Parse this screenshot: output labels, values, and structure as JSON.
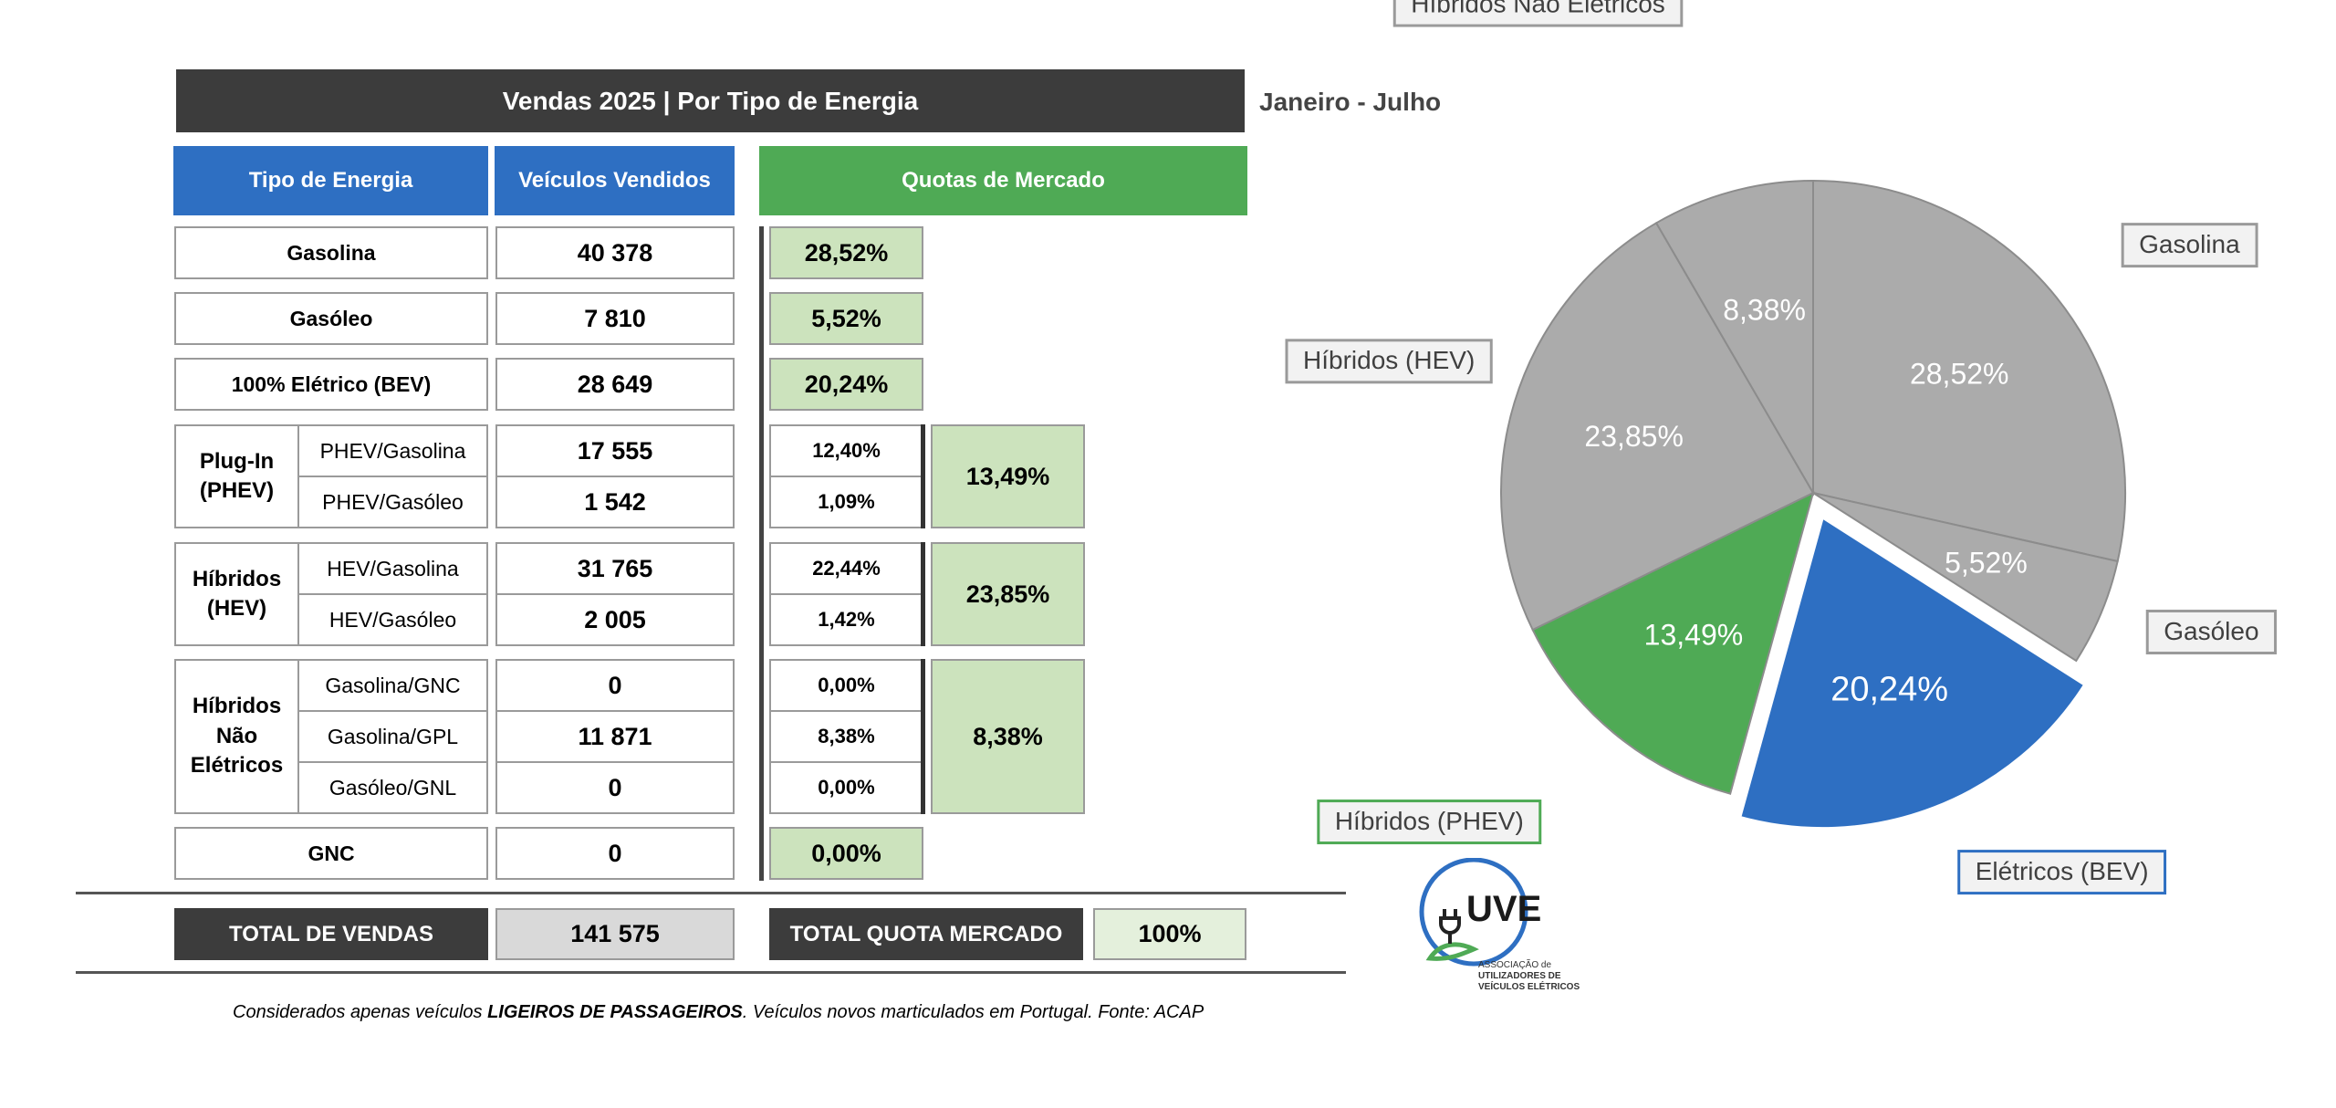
{
  "title": "Vendas 2025 | Por Tipo de Energia",
  "period": "Janeiro - Julho",
  "headers": {
    "type": "Tipo de Energia",
    "vehicles": "Veículos Vendidos",
    "shares": "Quotas de Mercado"
  },
  "rows": {
    "gasolina": {
      "label": "Gasolina",
      "value": "40 378",
      "share": "28,52%"
    },
    "gasoleo": {
      "label": "Gasóleo",
      "value": "7 810",
      "share": "5,52%"
    },
    "bev": {
      "label": "100% Elétrico (BEV)",
      "value": "28 649",
      "share": "20,24%"
    },
    "phev": {
      "group_line1": "Plug-In",
      "group_line2": "(PHEV)",
      "total_share": "13,49%",
      "sub": [
        {
          "label": "PHEV/Gasolina",
          "value": "17 555",
          "share": "12,40%"
        },
        {
          "label": "PHEV/Gasóleo",
          "value": "1 542",
          "share": "1,09%"
        }
      ]
    },
    "hev": {
      "group_line1": "Híbridos",
      "group_line2": "(HEV)",
      "total_share": "23,85%",
      "sub": [
        {
          "label": "HEV/Gasolina",
          "value": "31 765",
          "share": "22,44%"
        },
        {
          "label": "HEV/Gasóleo",
          "value": "2 005",
          "share": "1,42%"
        }
      ]
    },
    "nonelec": {
      "group_line1": "Híbridos",
      "group_line2": "Não",
      "group_line3": "Elétricos",
      "total_share": "8,38%",
      "sub": [
        {
          "label": "Gasolina/GNC",
          "value": "0",
          "share": "0,00%"
        },
        {
          "label": "Gasolina/GPL",
          "value": "11 871",
          "share": "8,38%"
        },
        {
          "label": "Gasóleo/GNL",
          "value": "0",
          "share": "0,00%"
        }
      ]
    },
    "gnc": {
      "label": "GNC",
      "value": "0",
      "share": "0,00%"
    }
  },
  "totals": {
    "sales_label": "TOTAL DE VENDAS",
    "sales_value": "141 575",
    "share_label": "TOTAL QUOTA MERCADO",
    "share_value": "100%"
  },
  "note": {
    "before": "Considerados apenas veículos ",
    "bold": "LIGEIROS DE PASSAGEIROS",
    "after": ". Veículos novos marticulados em Portugal. Fonte: ACAP"
  },
  "logo": {
    "mark": "UVE",
    "line1": "ASSOCIAÇÃO de",
    "line2": "UTILIZADORES DE",
    "line3": "VEÍCULOS ELÉTRICOS"
  },
  "colors": {
    "dark": "#3c3c3c",
    "blue": "#2e6fc2",
    "green": "#4faa55",
    "light_green": "#cce3bd",
    "grey": "#ababab"
  },
  "chart_data": {
    "type": "pie",
    "slices": [
      {
        "label": "Gasolina",
        "value": 28.52,
        "text": "28,52%",
        "color": "#ababab"
      },
      {
        "label": "Gasóleo",
        "value": 5.52,
        "text": "5,52%",
        "color": "#ababab"
      },
      {
        "label": "Elétricos (BEV)",
        "value": 20.24,
        "text": "20,24%",
        "color": "#2e6fc2",
        "exploded": true
      },
      {
        "label": "Híbridos (PHEV)",
        "value": 13.49,
        "text": "13,49%",
        "color": "#4faa55"
      },
      {
        "label": "Híbridos (HEV)",
        "value": 23.85,
        "text": "23,85%",
        "color": "#ababab"
      },
      {
        "label": "Híbridos Não Elétricos",
        "value": 8.38,
        "text": "8,38%",
        "color": "#ababab"
      }
    ]
  }
}
